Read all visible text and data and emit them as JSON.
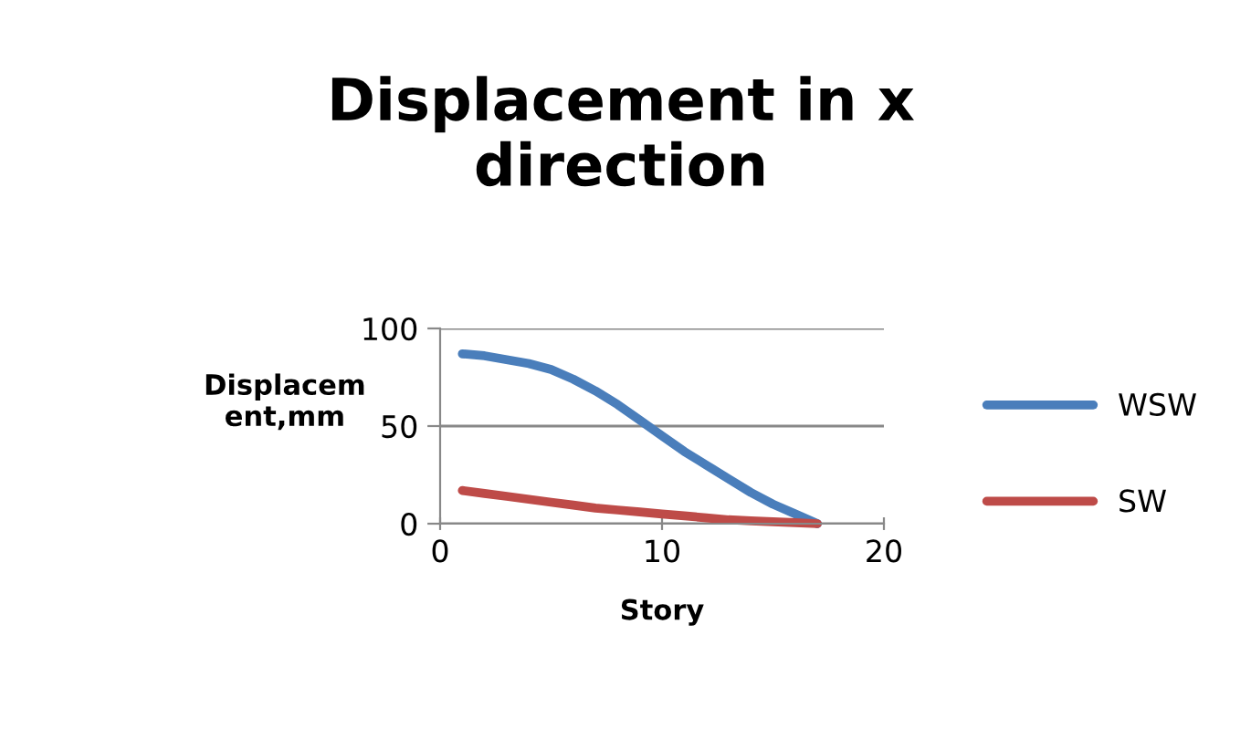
{
  "chart_data": {
    "type": "line",
    "title": "Displacement in x direction",
    "xlabel": "Story",
    "ylabel": "Displacem\nent,mm",
    "x": [
      1,
      2,
      3,
      4,
      5,
      6,
      7,
      8,
      9,
      10,
      11,
      12,
      13,
      14,
      15,
      16,
      17
    ],
    "series": [
      {
        "name": "WSW",
        "color": "#4a7ebb",
        "values": [
          87,
          86,
          84,
          82,
          79,
          74,
          68,
          61,
          53,
          45,
          37,
          30,
          23,
          16,
          10,
          5,
          0
        ]
      },
      {
        "name": "SW",
        "color": "#be4b48",
        "values": [
          17,
          15.5,
          14,
          12.5,
          11,
          9.5,
          8,
          7,
          6,
          5,
          4,
          3,
          2,
          1.5,
          1,
          0.5,
          0
        ]
      }
    ],
    "xlim": [
      0,
      20
    ],
    "xticks": [
      0,
      10,
      20
    ],
    "ylim": [
      0,
      100
    ],
    "yticks": [
      0,
      50,
      100
    ],
    "grid": "y",
    "legend": "right",
    "marker": "none",
    "line_style": "solid"
  }
}
